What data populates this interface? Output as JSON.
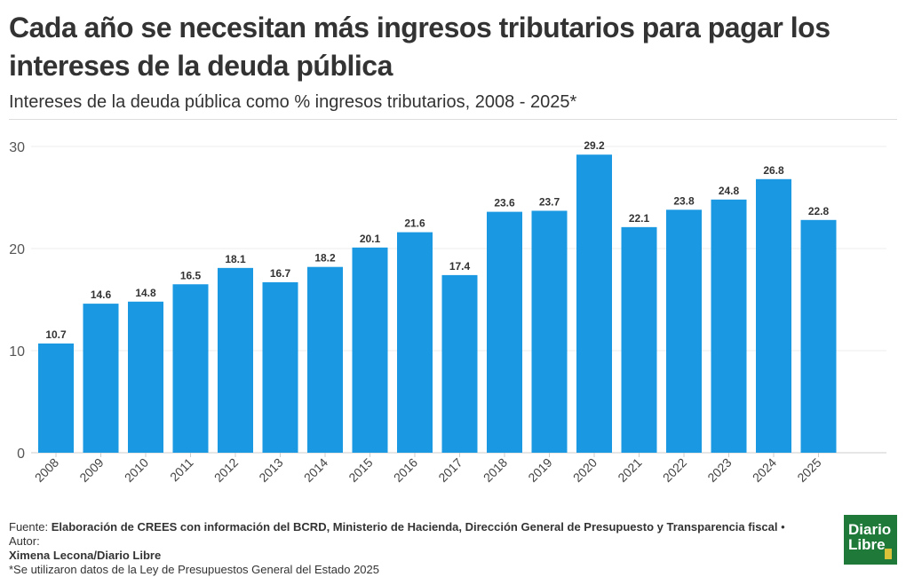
{
  "header": {
    "title": "Cada año se necesitan más ingresos tributarios para pagar los intereses de la deuda pública",
    "subtitle": "Intereses de la deuda pública como % ingresos tributarios, 2008 - 2025*"
  },
  "chart_data": {
    "type": "bar",
    "categories": [
      "2008",
      "2009",
      "2010",
      "2011",
      "2012",
      "2013",
      "2014",
      "2015",
      "2016",
      "2017",
      "2018",
      "2019",
      "2020",
      "2021",
      "2022",
      "2023",
      "2024",
      "2025"
    ],
    "values": [
      10.7,
      14.6,
      14.8,
      16.5,
      18.1,
      16.7,
      18.2,
      20.1,
      21.6,
      17.4,
      23.6,
      23.7,
      29.2,
      22.1,
      23.8,
      24.8,
      26.8,
      22.8
    ],
    "ylim": [
      0,
      30
    ],
    "yticks": [
      0,
      10,
      20,
      30
    ],
    "xlabel": "",
    "ylabel": "",
    "bar_color": "#1a98e2",
    "grid": true
  },
  "footer": {
    "source_prefix": "Fuente: ",
    "source": "Elaboración de CREES con información del BCRD, Ministerio de Hacienda, Dirección General de Presupuesto y Transparencia fiscal",
    "author_prefix": " • Autor: ",
    "author": "Ximena Lecona/Diario Libre",
    "note": "*Se utilizaron datos de la Ley de Presupuestos General del Estado 2025"
  },
  "logo": {
    "line1": "Diario",
    "line2": "Libre",
    "icon": "statue-icon",
    "color": "#1f7a3a"
  }
}
